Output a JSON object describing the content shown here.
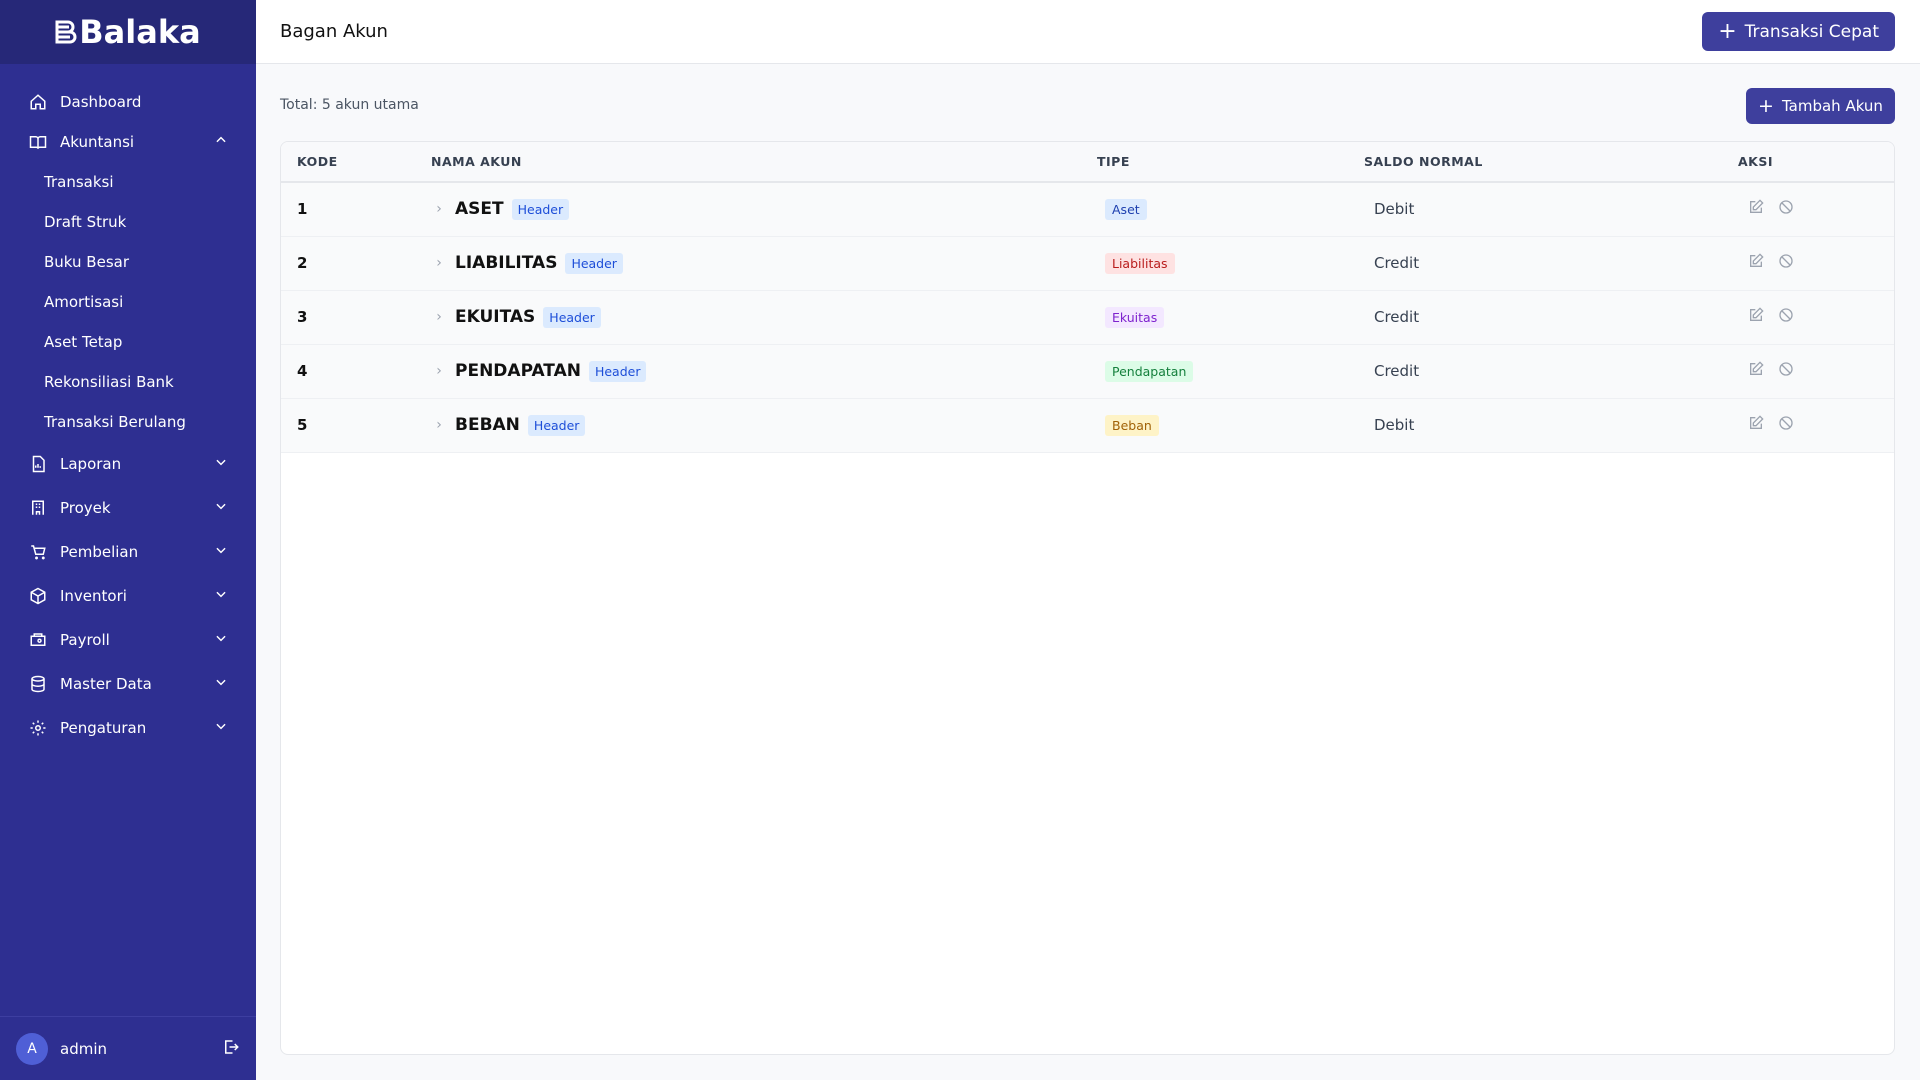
{
  "brand": {
    "name": "Balaka"
  },
  "sidebar": {
    "items": [
      {
        "label": "Dashboard",
        "icon": "home-icon"
      },
      {
        "label": "Akuntansi",
        "icon": "book-icon",
        "expanded": true
      }
    ],
    "sub_items": [
      "Transaksi",
      "Draft Struk",
      "Buku Besar",
      "Amortisasi",
      "Aset Tetap",
      "Rekonsiliasi Bank",
      "Transaksi Berulang"
    ],
    "groups": [
      {
        "label": "Laporan",
        "icon": "report-icon"
      },
      {
        "label": "Proyek",
        "icon": "building-icon"
      },
      {
        "label": "Pembelian",
        "icon": "cart-icon"
      },
      {
        "label": "Inventori",
        "icon": "box-icon"
      },
      {
        "label": "Payroll",
        "icon": "payroll-icon"
      },
      {
        "label": "Master Data",
        "icon": "database-icon"
      },
      {
        "label": "Pengaturan",
        "icon": "gear-icon"
      }
    ]
  },
  "user": {
    "initial": "A",
    "name": "admin"
  },
  "header": {
    "title": "Bagan Akun",
    "quick_label": "Transaksi Cepat"
  },
  "main": {
    "total": "Total: 5 akun utama",
    "add_label": "Tambah Akun",
    "columns": [
      "KODE",
      "NAMA AKUN",
      "TIPE",
      "SALDO NORMAL",
      "AKSI"
    ],
    "rows": [
      {
        "code": "1",
        "name": "ASET",
        "badge": "Header",
        "type": "Aset",
        "normal": "Debit",
        "type_bg": "#dbeafe",
        "type_fg": "#1e40af"
      },
      {
        "code": "2",
        "name": "LIABILITAS",
        "badge": "Header",
        "type": "Liabilitas",
        "normal": "Credit",
        "type_bg": "#fee2e2",
        "type_fg": "#b91c1c"
      },
      {
        "code": "3",
        "name": "EKUITAS",
        "badge": "Header",
        "type": "Ekuitas",
        "normal": "Credit",
        "type_bg": "#f3e8ff",
        "type_fg": "#7e22ce"
      },
      {
        "code": "4",
        "name": "PENDAPATAN",
        "badge": "Header",
        "type": "Pendapatan",
        "normal": "Credit",
        "type_bg": "#dcfce7",
        "type_fg": "#15803d"
      },
      {
        "code": "5",
        "name": "BEBAN",
        "badge": "Header",
        "type": "Beban",
        "normal": "Debit",
        "type_bg": "#fef3c7",
        "type_fg": "#a16207"
      }
    ]
  }
}
